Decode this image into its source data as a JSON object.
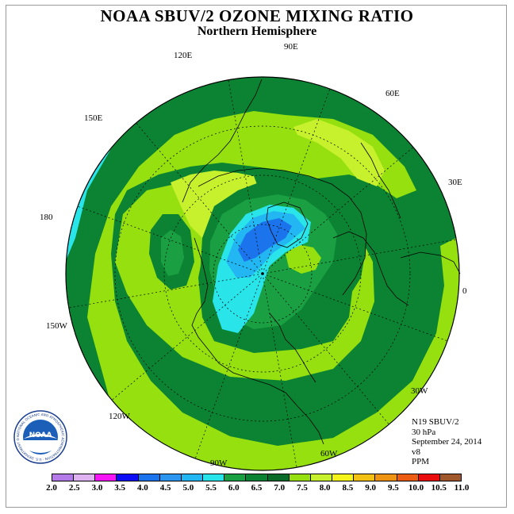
{
  "title": "NOAA SBUV/2 OZONE MIXING RATIO",
  "subtitle": "Northern Hemisphere",
  "longitude_labels": [
    "90E",
    "60E",
    "30E",
    "0",
    "30W",
    "60W",
    "90W",
    "120W",
    "150W",
    "180",
    "150E",
    "120E"
  ],
  "info": {
    "instrument": "N19 SBUV/2",
    "level": "30 hPa",
    "date": "September 24, 2014",
    "version": "v8",
    "units": "PPM"
  },
  "colorbar": {
    "ticks": [
      "2.0",
      "2.5",
      "3.0",
      "3.5",
      "4.0",
      "4.5",
      "5.0",
      "5.5",
      "6.0",
      "6.5",
      "7.0",
      "7.5",
      "8.0",
      "8.5",
      "9.0",
      "9.5",
      "10.0",
      "10.5",
      "11.0"
    ],
    "colors": [
      "#b47ae8",
      "#dfb2f2",
      "#f515f5",
      "#0d0df5",
      "#1b74ec",
      "#2a96f0",
      "#22b6f2",
      "#29e5ea",
      "#1aa043",
      "#0b8332",
      "#0a6a27",
      "#95e00e",
      "#c7f12c",
      "#f4f419",
      "#f2c111",
      "#ef9312",
      "#ec5d11",
      "#ea0d0d",
      "#a0572c"
    ]
  },
  "logo": {
    "text": "NOAA",
    "ring_text": "NATIONAL OCEANIC AND ATMOSPHERIC ADMINISTRATION · U.S. DEPARTMENT OF COMMERCE"
  },
  "map": {
    "projection": "north polar stereographic",
    "field_colors": {
      "outer_cyan": "#29e5ea",
      "dark_green": "#0b8332",
      "mid_green": "#1aa043",
      "light_green": "#95e00e",
      "yellow_green": "#c7f12c",
      "polar_cyan": "#29e5ea",
      "polar_light_blue": "#22b6f2",
      "polar_blue": "#1b74ec"
    }
  }
}
